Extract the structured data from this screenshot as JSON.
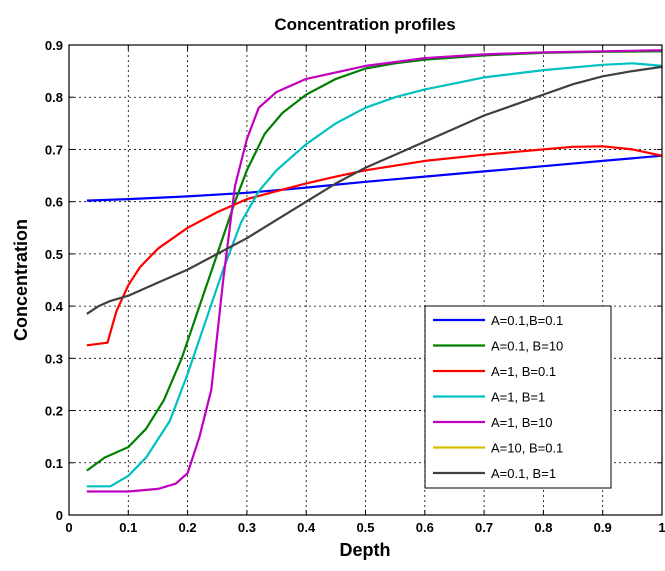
{
  "chart_data": {
    "type": "line",
    "title": "Concentration profiles",
    "xlabel": "Depth",
    "ylabel": "Concentration",
    "xlim": [
      0,
      1
    ],
    "ylim": [
      0,
      0.9
    ],
    "x_ticks": [
      "0",
      "0.1",
      "0.2",
      "0.3",
      "0.4",
      "0.5",
      "0.6",
      "0.7",
      "0.8",
      "0.9",
      "1"
    ],
    "y_ticks": [
      "0",
      "0.1",
      "0.2",
      "0.3",
      "0.4",
      "0.5",
      "0.6",
      "0.7",
      "0.8",
      "0.9"
    ],
    "grid": true,
    "legend_position": "bottom-right",
    "series": [
      {
        "name": "A=0.1,B=0.1",
        "color": "#0000ff",
        "x": [
          0.03,
          0.1,
          0.2,
          0.3,
          0.4,
          0.5,
          0.6,
          0.7,
          0.8,
          0.9,
          1.0
        ],
        "y": [
          0.602,
          0.605,
          0.61,
          0.617,
          0.627,
          0.638,
          0.648,
          0.658,
          0.668,
          0.678,
          0.688
        ]
      },
      {
        "name": "A=0.1, B=10",
        "color": "#008000",
        "x": [
          0.03,
          0.06,
          0.1,
          0.13,
          0.16,
          0.19,
          0.22,
          0.25,
          0.28,
          0.3,
          0.33,
          0.36,
          0.4,
          0.45,
          0.5,
          0.55,
          0.6,
          0.7,
          0.8,
          0.9,
          1.0
        ],
        "y": [
          0.085,
          0.11,
          0.13,
          0.165,
          0.22,
          0.3,
          0.4,
          0.5,
          0.6,
          0.66,
          0.73,
          0.77,
          0.805,
          0.835,
          0.855,
          0.865,
          0.872,
          0.88,
          0.885,
          0.887,
          0.888
        ]
      },
      {
        "name": "A=1, B=0.1",
        "color": "#ff0000",
        "x": [
          0.03,
          0.065,
          0.08,
          0.1,
          0.12,
          0.15,
          0.2,
          0.25,
          0.3,
          0.35,
          0.4,
          0.45,
          0.5,
          0.6,
          0.7,
          0.8,
          0.85,
          0.9,
          0.95,
          1.0
        ],
        "y": [
          0.325,
          0.33,
          0.39,
          0.44,
          0.475,
          0.51,
          0.55,
          0.58,
          0.605,
          0.62,
          0.635,
          0.648,
          0.66,
          0.678,
          0.69,
          0.7,
          0.705,
          0.706,
          0.7,
          0.688
        ]
      },
      {
        "name": "A=1, B=1",
        "color": "#00c0c0",
        "x": [
          0.03,
          0.07,
          0.1,
          0.13,
          0.17,
          0.2,
          0.23,
          0.26,
          0.29,
          0.32,
          0.35,
          0.4,
          0.45,
          0.5,
          0.55,
          0.6,
          0.7,
          0.8,
          0.9,
          0.95,
          1.0
        ],
        "y": [
          0.055,
          0.055,
          0.075,
          0.11,
          0.18,
          0.27,
          0.37,
          0.47,
          0.56,
          0.62,
          0.66,
          0.71,
          0.75,
          0.78,
          0.8,
          0.815,
          0.838,
          0.852,
          0.862,
          0.865,
          0.86
        ]
      },
      {
        "name": "A=1, B=10",
        "color": "#c000c0",
        "x": [
          0.03,
          0.1,
          0.15,
          0.18,
          0.2,
          0.22,
          0.24,
          0.26,
          0.28,
          0.3,
          0.32,
          0.35,
          0.4,
          0.5,
          0.6,
          0.7,
          0.8,
          0.9,
          1.0
        ],
        "y": [
          0.045,
          0.045,
          0.05,
          0.06,
          0.08,
          0.15,
          0.24,
          0.45,
          0.63,
          0.72,
          0.78,
          0.81,
          0.835,
          0.86,
          0.875,
          0.882,
          0.886,
          0.888,
          0.89
        ]
      },
      {
        "name": "A=10, B=0.1",
        "color": "#d4c000",
        "x": [],
        "y": []
      },
      {
        "name": "A=0.1, B=1",
        "color": "#404040",
        "x": [
          0.03,
          0.05,
          0.07,
          0.1,
          0.15,
          0.2,
          0.25,
          0.3,
          0.35,
          0.4,
          0.45,
          0.5,
          0.55,
          0.6,
          0.65,
          0.7,
          0.75,
          0.8,
          0.85,
          0.9,
          0.95,
          1.0
        ],
        "y": [
          0.385,
          0.4,
          0.41,
          0.42,
          0.445,
          0.47,
          0.5,
          0.53,
          0.565,
          0.6,
          0.635,
          0.665,
          0.69,
          0.715,
          0.74,
          0.765,
          0.785,
          0.805,
          0.825,
          0.84,
          0.85,
          0.858
        ]
      }
    ]
  }
}
